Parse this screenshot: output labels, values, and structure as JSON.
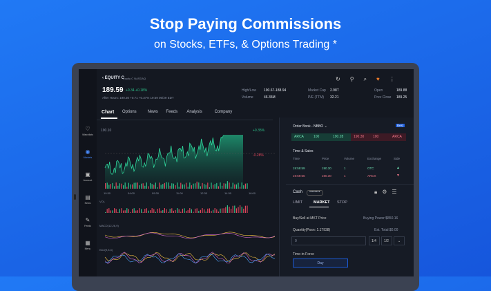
{
  "header": {
    "title": "Stop Paying Commissions",
    "subtitle": "on Stocks, ETFs, & Options Trading *"
  },
  "app": {
    "symbol": "EQUITY C",
    "exchange": "Equity C NASDAQ",
    "price": "189.59",
    "change": "+0.34 +0.18%",
    "after_hours": "After Hours: 190.30 +0.71 +0.37% 19:59 06/29 EDT",
    "stats": [
      [
        "High/Low",
        "190.67-188.94"
      ],
      [
        "Market Cap",
        "2.98T"
      ],
      [
        "Open",
        "189.88"
      ],
      [
        "Volume",
        "46.35M"
      ],
      [
        "P/E (TTM)",
        "32.21"
      ],
      [
        "Prev Close",
        "189.25"
      ]
    ],
    "tabs": [
      "Chart",
      "Options",
      "News",
      "Feeds",
      "Analysis",
      "Company"
    ],
    "sidebar": [
      "Watchlists",
      "Markets",
      "Account",
      "News",
      "Feeds",
      "Menu"
    ],
    "chart": {
      "high_label": "190.10",
      "pct_up": "+0.35%",
      "pct_down": "-0.28%",
      "times": [
        "19:30",
        "04:00",
        "09:30",
        "11:00",
        "12:30",
        "14:30",
        "16:00"
      ],
      "indicators": [
        "VOL",
        "MACD(12,26,9)",
        "KDJ(9,3,3)"
      ]
    },
    "order_book": {
      "title": "Order Book - NBBO",
      "badge": "Best",
      "bid": [
        "ARCA",
        "100",
        "190.28"
      ],
      "ask": [
        "190.30",
        "100",
        "ARCA"
      ]
    },
    "time_sales": {
      "title": "Time & Sales",
      "headers": [
        "Time",
        "Price",
        "Volume",
        "Exchange",
        "Side"
      ],
      "rows": [
        [
          "19:59:59",
          "190.30",
          "1",
          "OTC"
        ],
        [
          "19:59:56",
          "190.30",
          "1",
          "ARCX"
        ]
      ]
    },
    "trade": {
      "account": "Cash",
      "masked": "********",
      "order_types": [
        "LIMIT",
        "MARKET",
        "STOP"
      ],
      "mkt_note": "Buy/Sell at MKT Price",
      "buying_power": "Buying Power:$850.16",
      "quantity": "Quantity(Posn: 1.17938)",
      "est_total": "Est. Total:$0.00",
      "qty_value": "0",
      "fractions": [
        "1/4",
        "1/2"
      ],
      "tif_label": "Time-in-Force",
      "tif_value": "Day"
    }
  }
}
